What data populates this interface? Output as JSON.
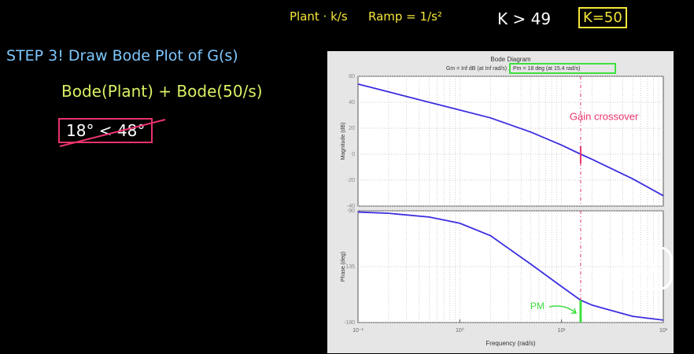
{
  "notes": {
    "plant": "Plant · k/s",
    "ramp": "Ramp = 1/s²",
    "k_condition": "K > 49",
    "k_value": "K=50",
    "step": "STEP 3! Draw Bode Plot of G(s)",
    "bode_sum": "Bode(Plant) + Bode(50/s)",
    "comparison": "18° < 48°"
  },
  "chart_data": [
    {
      "type": "line",
      "title": "Bode Diagram",
      "subtitle": "Gm = Inf dB (at Inf rad/s) ,",
      "subtitle_highlight": "Pm = 18 deg (at 15.4 rad/s)",
      "ylabel": "Magnitude (dB)",
      "xscale": "log",
      "grid": true,
      "xlim": [
        0.1,
        100
      ],
      "ylim": [
        -40,
        60
      ],
      "yticks": [
        -40,
        -20,
        0,
        20,
        40,
        60
      ],
      "x": [
        0.1,
        0.2,
        0.5,
        1,
        2,
        5,
        10,
        15.4,
        20,
        50,
        100
      ],
      "series": [
        {
          "color": "#3b2ee0",
          "values": [
            54,
            48,
            40,
            34,
            28,
            17,
            7,
            0,
            -4,
            -19,
            -32
          ]
        }
      ],
      "annotation": "Gain crossover",
      "annotation_color": "#e8336b"
    },
    {
      "type": "line",
      "ylabel": "Phase (deg)",
      "xlabel": "Frequency (rad/s)",
      "xscale": "log",
      "grid": true,
      "xlim": [
        0.1,
        100
      ],
      "xticks": [
        {
          "value": 0.1,
          "label": "10⁻¹"
        },
        {
          "value": 1,
          "label": "10⁰"
        },
        {
          "value": 10,
          "label": "10¹"
        },
        {
          "value": 100,
          "label": "10²"
        }
      ],
      "ylim": [
        -180,
        -90
      ],
      "yticks": [
        -180,
        -135,
        -90
      ],
      "x": [
        0.1,
        0.2,
        0.5,
        1,
        2,
        5,
        10,
        15.4,
        20,
        50,
        100
      ],
      "series": [
        {
          "color": "#3b2ee0",
          "values": [
            -91,
            -92,
            -95,
            -100,
            -110,
            -133,
            -151,
            -162,
            -166,
            -175,
            -178
          ]
        }
      ],
      "annotation": "PM",
      "annotation_color": "#3ee040"
    }
  ]
}
